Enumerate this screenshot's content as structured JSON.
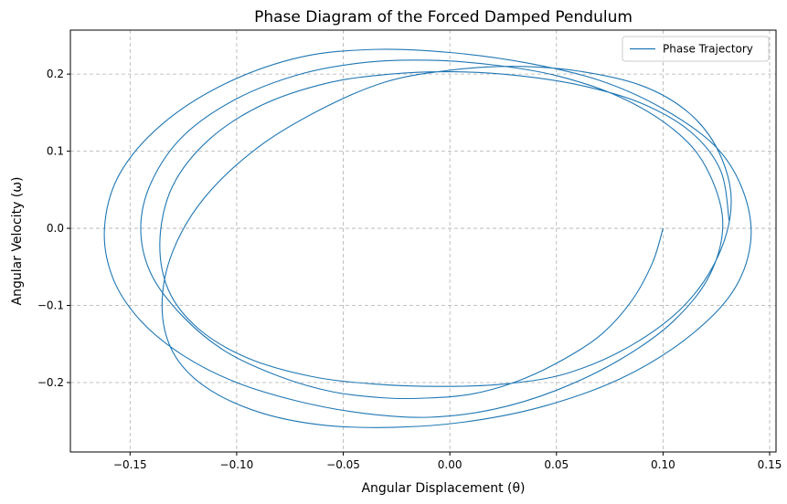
{
  "chart_data": {
    "type": "line",
    "title": "Phase Diagram of the Forced Damped Pendulum",
    "xlabel": "Angular Displacement (θ)",
    "ylabel": "Angular Velocity (ω)",
    "xlim": [
      -0.178,
      0.153
    ],
    "ylim": [
      -0.29,
      0.257
    ],
    "xticks": [
      -0.15,
      -0.1,
      -0.05,
      0.0,
      0.05,
      0.1,
      0.15
    ],
    "xtick_labels": [
      "−0.15",
      "−0.10",
      "−0.05",
      "0.00",
      "0.05",
      "0.10",
      "0.15"
    ],
    "yticks": [
      -0.2,
      -0.1,
      0.0,
      0.1,
      0.2
    ],
    "ytick_labels": [
      "−0.2",
      "−0.1",
      "0.0",
      "0.1",
      "0.2"
    ],
    "grid": true,
    "legend_position": "top-right",
    "series": [
      {
        "name": "Phase Trajectory",
        "color": "#1f77b4",
        "x": [
          0.1,
          0.095,
          0.085,
          0.07,
          0.05,
          0.03,
          0.01,
          -0.01,
          -0.03,
          -0.055,
          -0.08,
          -0.105,
          -0.125,
          -0.14,
          -0.145,
          -0.14,
          -0.125,
          -0.1,
          -0.07,
          -0.04,
          -0.01,
          0.02,
          0.05,
          0.08,
          0.105,
          0.12,
          0.128,
          0.122,
          0.105,
          0.08,
          0.05,
          0.02,
          -0.01,
          -0.04,
          -0.07,
          -0.1,
          -0.125,
          -0.145,
          -0.158,
          -0.162,
          -0.155,
          -0.135,
          -0.105,
          -0.07,
          -0.035,
          0.0,
          0.035,
          0.07,
          0.1,
          0.125,
          0.138,
          0.141,
          0.132,
          0.11,
          0.08,
          0.045,
          0.01,
          -0.025,
          -0.06,
          -0.09,
          -0.115,
          -0.13,
          -0.135,
          -0.13,
          -0.115,
          -0.09,
          -0.06,
          -0.03,
          0.0,
          0.03,
          0.06,
          0.09,
          0.112,
          0.126,
          0.132,
          0.126,
          0.11,
          0.085,
          0.055,
          0.025,
          -0.005,
          -0.035,
          -0.065,
          -0.095,
          -0.118,
          -0.132,
          -0.136,
          -0.13,
          -0.113,
          -0.088,
          -0.058,
          -0.028,
          0.002,
          0.032,
          0.062,
          0.09,
          0.113,
          0.127,
          0.131
        ],
        "y": [
          0.0,
          -0.045,
          -0.095,
          -0.14,
          -0.175,
          -0.2,
          -0.215,
          -0.22,
          -0.22,
          -0.212,
          -0.192,
          -0.16,
          -0.115,
          -0.06,
          0.0,
          0.06,
          0.12,
          0.168,
          0.2,
          0.215,
          0.218,
          0.212,
          0.198,
          0.17,
          0.128,
          0.08,
          0.01,
          -0.06,
          -0.12,
          -0.17,
          -0.21,
          -0.235,
          -0.245,
          -0.24,
          -0.225,
          -0.2,
          -0.165,
          -0.12,
          -0.065,
          0.0,
          0.07,
          0.135,
          0.188,
          0.222,
          0.232,
          0.228,
          0.215,
          0.192,
          0.155,
          0.105,
          0.045,
          -0.02,
          -0.085,
          -0.145,
          -0.195,
          -0.23,
          -0.25,
          -0.258,
          -0.255,
          -0.238,
          -0.205,
          -0.16,
          -0.1,
          -0.03,
          0.04,
          0.105,
          0.155,
          0.19,
          0.205,
          0.21,
          0.204,
          0.185,
          0.15,
          0.1,
          0.035,
          -0.035,
          -0.1,
          -0.152,
          -0.188,
          -0.202,
          -0.205,
          -0.202,
          -0.192,
          -0.168,
          -0.13,
          -0.08,
          -0.015,
          0.055,
          0.115,
          0.16,
          0.188,
          0.2,
          0.203,
          0.198,
          0.185,
          0.162,
          0.125,
          0.075,
          0.01
        ]
      }
    ]
  }
}
